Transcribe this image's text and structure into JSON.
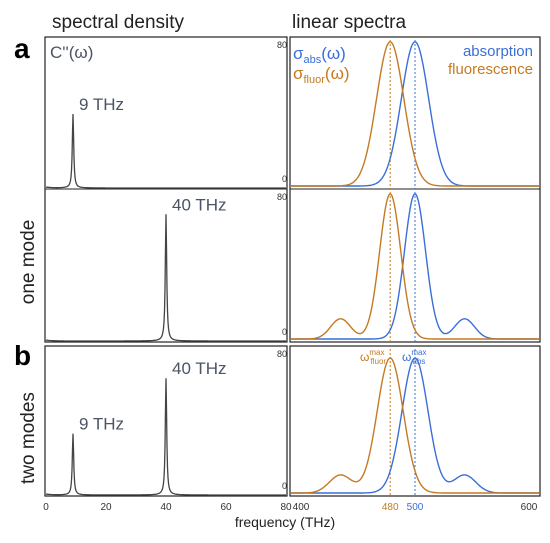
{
  "headers": {
    "left": "spectral density",
    "right": "linear spectra"
  },
  "panel_letters": {
    "a": "a",
    "b": "b"
  },
  "row_labels": {
    "one": "one mode",
    "two": "two modes"
  },
  "spectral_symbol": "C''(ω)",
  "legend": {
    "abs_symbol": "σ",
    "abs_sub": "abs",
    "abs_arg": "(ω)",
    "fluor_symbol": "σ",
    "fluor_sub": "fluor",
    "fluor_arg": "(ω)",
    "absorption": "absorption",
    "fluorescence": "fluorescence"
  },
  "omega_labels": {
    "fluor_main": "ω",
    "fluor_sub": "fluor",
    "fluor_sup": "max",
    "abs_main": "ω",
    "abs_sub": "abs",
    "abs_sup": "max"
  },
  "x_axis_label": "frequency (THz)",
  "colors": {
    "absorption": "#3a6fd8",
    "fluorescence": "#c47a22",
    "spectral": "#444444",
    "frame": "#222222",
    "label": "#4a5565"
  },
  "chart_data": [
    {
      "type": "line",
      "id": "spectral-one-mode-9",
      "series": [
        {
          "name": "C''(ω)",
          "peaks": [
            {
              "x": 9,
              "height": 0.5
            }
          ]
        }
      ],
      "annotations": [
        {
          "text": "9 THz",
          "x": 9
        }
      ],
      "xlim": [
        0,
        80
      ]
    },
    {
      "type": "line",
      "id": "spectral-one-mode-40",
      "series": [
        {
          "name": "C''(ω)",
          "peaks": [
            {
              "x": 40,
              "height": 0.85
            }
          ]
        }
      ],
      "annotations": [
        {
          "text": "40 THz",
          "x": 40
        }
      ],
      "xlim": [
        0,
        80
      ]
    },
    {
      "type": "line",
      "id": "spectral-two-modes",
      "series": [
        {
          "name": "C''(ω)",
          "peaks": [
            {
              "x": 9,
              "height": 0.42
            },
            {
              "x": 40,
              "height": 0.8
            }
          ]
        }
      ],
      "annotations": [
        {
          "text": "9 THz",
          "x": 9
        },
        {
          "text": "40 THz",
          "x": 40
        }
      ],
      "xlim": [
        0,
        80
      ],
      "xticks": [
        "0",
        "20",
        "40",
        "60",
        "80"
      ]
    },
    {
      "type": "line",
      "id": "spectra-one-mode-9",
      "series": [
        {
          "name": "absorption",
          "center": 500,
          "width": 11,
          "amp": 79,
          "sidebands": []
        },
        {
          "name": "fluorescence",
          "center": 480,
          "width": 11,
          "amp": 79,
          "sidebands": []
        }
      ],
      "xlim": [
        400,
        600
      ],
      "ylim": [
        0,
        80
      ],
      "yticks": [
        "0",
        "80"
      ],
      "vlines": [
        480,
        500
      ]
    },
    {
      "type": "line",
      "id": "spectra-one-mode-40",
      "series": [
        {
          "name": "absorption",
          "center": 500,
          "width": 8.5,
          "amp": 79,
          "sidebands": [
            {
              "x": 540,
              "amp": 11,
              "width": 8
            }
          ]
        },
        {
          "name": "fluorescence",
          "center": 480,
          "width": 8.5,
          "amp": 79,
          "sidebands": [
            {
              "x": 440,
              "amp": 11,
              "width": 8
            }
          ]
        }
      ],
      "xlim": [
        400,
        600
      ],
      "ylim": [
        0,
        80
      ],
      "yticks": [
        "0",
        "80"
      ],
      "vlines": [
        480,
        500
      ]
    },
    {
      "type": "line",
      "id": "spectra-two-modes",
      "series": [
        {
          "name": "absorption",
          "center": 500,
          "width": 10.5,
          "amp": 75,
          "sidebands": [
            {
              "x": 540,
              "amp": 10,
              "width": 9
            }
          ]
        },
        {
          "name": "fluorescence",
          "center": 480,
          "width": 10.5,
          "amp": 75,
          "sidebands": [
            {
              "x": 440,
              "amp": 10,
              "width": 9
            }
          ]
        }
      ],
      "xlim": [
        400,
        600
      ],
      "ylim": [
        0,
        80
      ],
      "yticks": [
        "0",
        "80"
      ],
      "xticks": [
        "400",
        "480",
        "500",
        "600"
      ],
      "vlines": [
        480,
        500
      ]
    }
  ]
}
